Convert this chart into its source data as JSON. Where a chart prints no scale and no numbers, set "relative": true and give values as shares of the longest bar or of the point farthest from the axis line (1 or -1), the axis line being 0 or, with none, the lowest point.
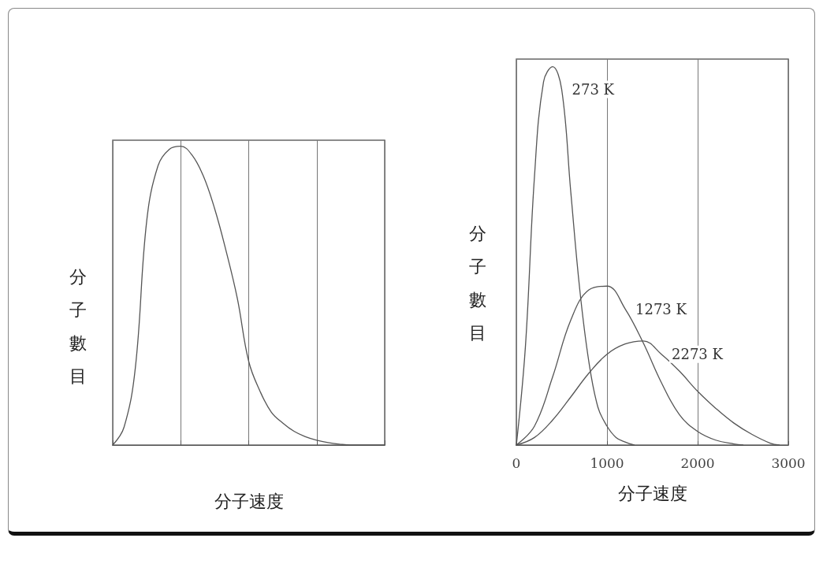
{
  "chart_data": [
    {
      "type": "line",
      "relative": true,
      "xlabel": "分子速度",
      "ylabel": "分子數目",
      "grid": "x",
      "legend": false,
      "marker": "none",
      "line_style": "solid",
      "categories": [
        null,
        null,
        null,
        null,
        null,
        null,
        null,
        null,
        null,
        null,
        null,
        null,
        null,
        null,
        null,
        null,
        null,
        null,
        null,
        null,
        null,
        null,
        null,
        null,
        null
      ],
      "series": [
        {
          "color": "#555555",
          "values": [
            0,
            0.06,
            0.26,
            0.75,
            0.935,
            0.99,
            1,
            0.97,
            0.9,
            0.79,
            0.65,
            0.49,
            0.28,
            0.18,
            0.11,
            0.074,
            0.046,
            0.028,
            0.016,
            0.008,
            0.003,
            0,
            0,
            0,
            0
          ]
        }
      ]
    },
    {
      "type": "line",
      "relative": true,
      "xlabel": "分子速度",
      "ylabel": "分子數目",
      "grid": "x",
      "legend": false,
      "marker": "none",
      "line_style": "solid",
      "xlim": [
        0,
        3000
      ],
      "xticks": [
        0,
        1000,
        2000,
        3000
      ],
      "series": [
        {
          "name": "273 K",
          "color": "#555555",
          "x": [
            0,
            100,
            200,
            300,
            400,
            500,
            600,
            700,
            800,
            900,
            1000,
            1100,
            1200,
            1300
          ],
          "values": [
            0,
            0.26,
            0.71,
            0.96,
            1,
            0.94,
            0.67,
            0.41,
            0.22,
            0.1,
            0.05,
            0.02,
            0.008,
            0
          ]
        },
        {
          "name": "1273 K",
          "color": "#555555",
          "x": [
            0,
            200,
            400,
            600,
            800,
            1000,
            1200,
            1400,
            1600,
            1800,
            2000,
            2200,
            2400,
            2500
          ],
          "values": [
            0,
            0.05,
            0.18,
            0.33,
            0.41,
            0.42,
            0.36,
            0.27,
            0.165,
            0.08,
            0.036,
            0.013,
            0.003,
            0
          ]
        },
        {
          "name": "2273 K",
          "color": "#555555",
          "x": [
            0,
            200,
            400,
            600,
            800,
            1000,
            1200,
            1400,
            1600,
            1800,
            2000,
            2200,
            2400,
            2600,
            2800,
            2900
          ],
          "values": [
            0,
            0.02,
            0.066,
            0.127,
            0.19,
            0.24,
            0.267,
            0.275,
            0.24,
            0.195,
            0.142,
            0.097,
            0.058,
            0.028,
            0.005,
            0
          ]
        }
      ]
    }
  ]
}
